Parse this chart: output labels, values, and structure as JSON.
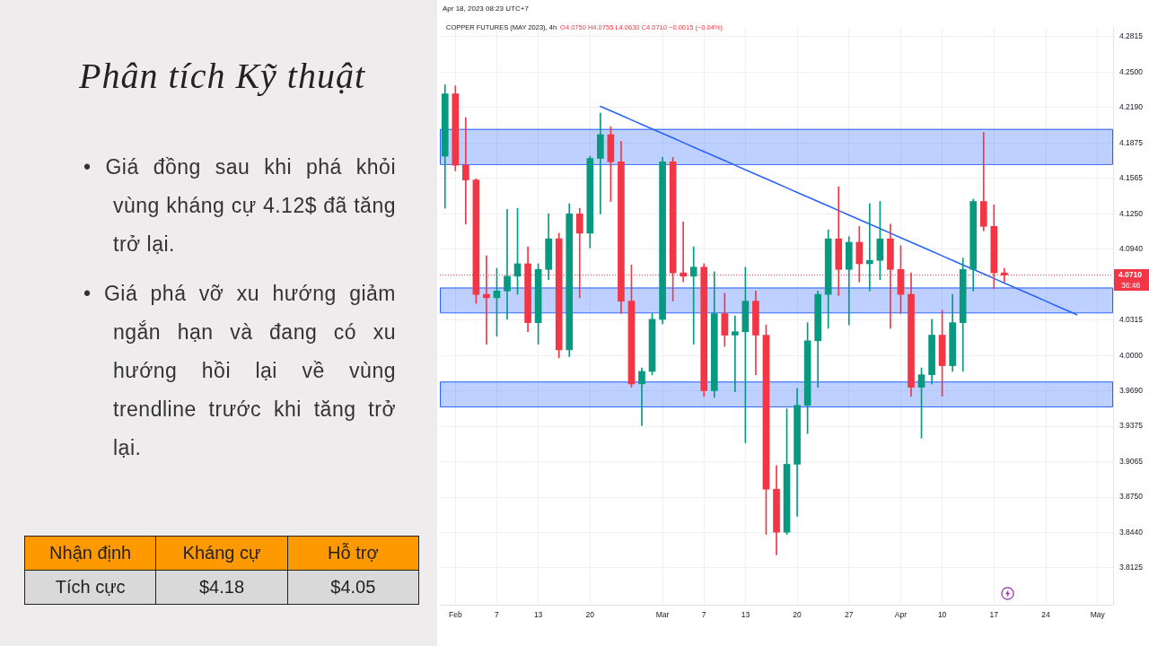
{
  "chart_data": [
    {
      "type": "other",
      "title": "Phân tích Kỹ thuật",
      "annotations": [
        "• Giá đồng sau khi phá khỏi vùng kháng cự 4.12$ đã tăng trở lại.",
        "• Giá phá vỡ xu hướng giảm ngắn hạn và đang có xu hướng hồi lại về vùng trendline trước khi tăng trở lại."
      ]
    },
    {
      "type": "other",
      "categories": [
        "Nhận định",
        "Kháng cự",
        "Hỗ trợ"
      ],
      "annotations": [
        "Tích cực",
        "$4.18",
        "$4.05"
      ]
    },
    {
      "type": "candlestick",
      "title": "COPPER FUTURES (MAY 2023), 4h",
      "subtitle": "O4.0750 H4.0755 L4.0630 C4.0710 −0.0015 (−0.04%)",
      "annotations": [
        "Apr 18, 2023 08:23 UTC+7",
        {
          "text": "36:46",
          "y": 4.071
        }
      ],
      "categories": [
        null,
        "Feb",
        null,
        null,
        null,
        "7",
        null,
        null,
        null,
        "13",
        null,
        null,
        null,
        null,
        "20",
        null,
        null,
        null,
        null,
        null,
        null,
        "Mar",
        null,
        null,
        null,
        "7",
        null,
        null,
        null,
        "13",
        null,
        null,
        null,
        null,
        "20",
        null,
        null,
        null,
        null,
        "27",
        null,
        null,
        null,
        null,
        "Apr",
        null,
        null,
        null,
        "10",
        null,
        null,
        null,
        null,
        "17",
        null,
        null,
        null,
        null,
        "24",
        null,
        null,
        null,
        null,
        "May",
        null
      ],
      "series": [
        {
          "type": "line",
          "color": "#2962ff",
          "values": [
            null,
            null,
            null,
            null,
            null,
            null,
            null,
            null,
            null,
            null,
            null,
            null,
            null,
            null,
            null,
            4.22,
            4.216,
            4.212,
            4.208,
            4.204,
            4.2,
            4.196,
            4.192,
            4.188,
            4.184,
            4.18,
            4.176,
            4.172,
            4.168,
            4.164,
            4.16,
            4.156,
            4.152,
            4.148,
            4.144,
            4.14,
            4.136,
            4.132,
            4.128,
            4.124,
            4.12,
            4.116,
            4.112,
            4.108,
            4.104,
            4.1,
            4.096,
            4.092,
            4.088,
            4.084,
            4.08,
            4.076,
            4.072,
            4.068,
            4.064,
            4.06,
            4.056,
            4.052,
            4.048,
            4.044,
            4.04,
            4.036,
            null,
            null,
            null
          ]
        },
        {
          "type": "candlestick",
          "ohlc": [
            [
              4.176,
              4.239,
              4.13,
              4.231
            ],
            [
              4.231,
              4.238,
              4.163,
              4.168
            ],
            [
              4.168,
              4.21,
              4.116,
              4.155
            ],
            [
              4.155,
              4.156,
              4.046,
              4.054
            ],
            [
              4.054,
              4.088,
              4.01,
              4.051
            ],
            [
              4.051,
              4.077,
              4.017,
              4.057
            ],
            [
              4.057,
              4.129,
              4.032,
              4.07
            ],
            [
              4.07,
              4.13,
              4.054,
              4.081
            ],
            [
              4.081,
              4.096,
              4.021,
              4.029
            ],
            [
              4.029,
              4.081,
              4.01,
              4.076
            ],
            [
              4.076,
              4.125,
              4.067,
              4.103
            ],
            [
              4.103,
              4.108,
              3.998,
              4.005
            ],
            [
              4.005,
              4.134,
              3.999,
              4.125
            ],
            [
              4.125,
              4.13,
              4.051,
              4.108
            ],
            [
              4.108,
              4.176,
              4.095,
              4.174
            ],
            [
              4.174,
              4.214,
              4.125,
              4.195
            ],
            [
              4.195,
              4.202,
              4.136,
              4.171
            ],
            [
              4.171,
              4.189,
              4.037,
              4.048
            ],
            [
              4.048,
              4.08,
              3.972,
              3.975
            ],
            [
              3.975,
              3.989,
              3.938,
              3.986
            ],
            [
              3.986,
              4.037,
              3.983,
              4.032
            ],
            [
              4.032,
              4.175,
              4.028,
              4.171
            ],
            [
              4.171,
              4.175,
              4.048,
              4.073
            ],
            [
              4.073,
              4.118,
              4.065,
              4.07
            ],
            [
              4.07,
              4.096,
              4.01,
              4.078
            ],
            [
              4.078,
              4.081,
              3.964,
              3.969
            ],
            [
              3.969,
              4.074,
              3.963,
              4.037
            ],
            [
              4.037,
              4.055,
              4.008,
              4.018
            ],
            [
              4.018,
              4.035,
              3.968,
              4.021
            ],
            [
              4.021,
              4.078,
              3.923,
              4.048
            ],
            [
              4.048,
              4.057,
              3.983,
              4.018
            ],
            [
              4.018,
              4.027,
              3.842,
              3.882
            ],
            [
              3.882,
              3.903,
              3.824,
              3.844
            ],
            [
              3.844,
              3.953,
              3.842,
              3.904
            ],
            [
              3.904,
              3.971,
              3.858,
              3.956
            ],
            [
              3.956,
              4.029,
              3.931,
              4.013
            ],
            [
              4.013,
              4.057,
              3.972,
              4.054
            ],
            [
              4.054,
              4.111,
              4.024,
              4.103
            ],
            [
              4.103,
              4.149,
              4.053,
              4.076
            ],
            [
              4.076,
              4.105,
              4.027,
              4.1
            ],
            [
              4.1,
              4.114,
              4.065,
              4.081
            ],
            [
              4.081,
              4.134,
              4.057,
              4.084
            ],
            [
              4.084,
              4.136,
              4.067,
              4.103
            ],
            [
              4.103,
              4.116,
              4.024,
              4.076
            ],
            [
              4.076,
              4.097,
              4.037,
              4.054
            ],
            [
              4.054,
              4.073,
              3.964,
              3.972
            ],
            [
              3.972,
              3.989,
              3.927,
              3.983
            ],
            [
              3.983,
              4.032,
              3.975,
              4.018
            ],
            [
              4.018,
              4.04,
              3.964,
              3.991
            ],
            [
              3.991,
              4.054,
              3.986,
              4.029
            ],
            [
              4.029,
              4.086,
              3.986,
              4.076
            ],
            [
              4.076,
              4.138,
              4.057,
              4.136
            ],
            [
              4.136,
              4.197,
              4.11,
              4.114
            ],
            [
              4.114,
              4.133,
              4.059,
              4.073
            ],
            [
              4.073,
              4.077,
              4.065,
              4.071
            ],
            null,
            null,
            null,
            null,
            null,
            null,
            null,
            null,
            null,
            null
          ],
          "colors": [
            "#089981",
            "#f23645",
            "#f23645",
            "#f23645",
            "#f23645",
            "#089981",
            "#089981",
            "#089981",
            "#f23645",
            "#089981",
            "#089981",
            "#f23645",
            "#089981",
            "#f23645",
            "#089981",
            "#089981",
            "#f23645",
            "#f23645",
            "#f23645",
            "#089981",
            "#089981",
            "#089981",
            "#f23645",
            "#f23645",
            "#089981",
            "#f23645",
            "#089981",
            "#f23645",
            "#089981",
            "#089981",
            "#f23645",
            "#f23645",
            "#f23645",
            "#089981",
            "#089981",
            "#089981",
            "#089981",
            "#089981",
            "#f23645",
            "#089981",
            "#f23645",
            "#089981",
            "#089981",
            "#f23645",
            "#f23645",
            "#f23645",
            "#089981",
            "#089981",
            "#f23645",
            "#089981",
            "#089981",
            "#089981",
            "#f23645",
            "#f23645",
            "#f23645",
            null,
            null,
            null,
            null,
            null,
            null,
            null,
            null,
            null,
            null
          ]
        }
      ],
      "ylim": [
        3.78,
        4.29
      ],
      "yticks": [
        3.8125,
        {
          "value": 3.844,
          "label": "3.8440"
        },
        {
          "value": 3.875,
          "label": "3.8750"
        },
        3.9065,
        3.9375,
        {
          "value": 3.969,
          "label": "3.9690"
        },
        {
          "value": 4,
          "label": "4.0000"
        },
        4.0315,
        {
          "value": 4.094,
          "label": "4.0940"
        },
        {
          "value": 4.125,
          "label": "4.1250"
        },
        4.1565,
        4.1875,
        {
          "value": 4.219,
          "label": "4.2190"
        },
        {
          "value": 4.25,
          "label": "4.2500"
        },
        4.2815
      ],
      "grid": true,
      "bands": [
        {
          "axis": "y",
          "from": 4.169,
          "to": 4.2,
          "color": "#2962ff"
        },
        {
          "axis": "y",
          "from": 4.038,
          "to": 4.06,
          "color": "#2962ff"
        },
        {
          "axis": "y",
          "from": 3.955,
          "to": 3.977,
          "color": "#2962ff"
        }
      ],
      "ref_lines": [
        {
          "axis": "y",
          "value": 4.071,
          "label": "4.0710",
          "color": "#f23645",
          "line_style": "dotted"
        }
      ]
    }
  ]
}
